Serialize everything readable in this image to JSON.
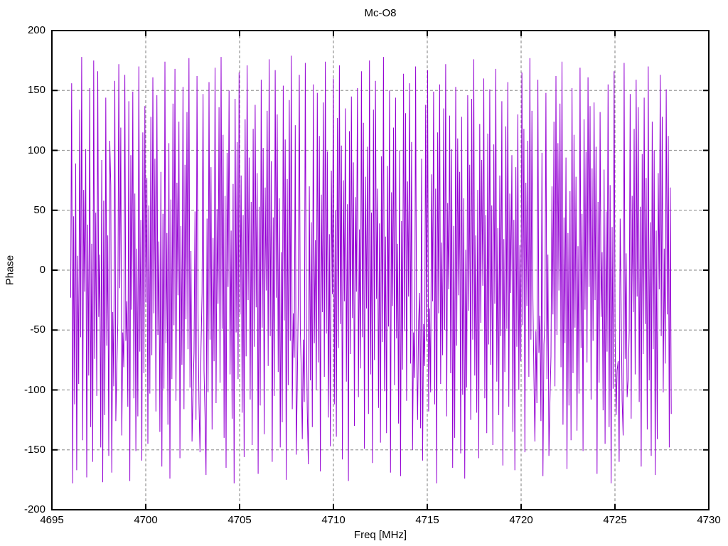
{
  "chart_data": {
    "type": "line",
    "title": "Mc-O8",
    "xlabel": "Freq [MHz]",
    "ylabel": "Phase",
    "xlim": [
      4695,
      4730
    ],
    "ylim": [
      -200,
      200
    ],
    "x_ticks": [
      4695,
      4700,
      4705,
      4710,
      4715,
      4720,
      4725,
      4730
    ],
    "y_ticks": [
      -200,
      -150,
      -100,
      -50,
      0,
      50,
      100,
      150,
      200
    ],
    "grid": true,
    "legend": "none",
    "line_color": "#9400d3",
    "grid_color": "#9c9c9c",
    "border_color": "#000000",
    "background_color": "#ffffff",
    "series": [
      {
        "name": "phase",
        "x_start": 4696.0,
        "x_end": 4728.0,
        "y": [
          -23,
          156,
          -178,
          45,
          -112,
          89,
          -167,
          12,
          -95,
          134,
          -56,
          178,
          -142,
          67,
          -18,
          101,
          -173,
          38,
          -88,
          152,
          -131,
          22,
          -160,
          175,
          -74,
          48,
          -105,
          166,
          -39,
          13,
          -148,
          92,
          -177,
          58,
          -121,
          144,
          -63,
          29,
          -155,
          108,
          71,
          -169,
          -35,
          -97,
          158,
          -126,
          -84,
          -44,
          172,
          -15,
          119,
          -138,
          -52,
          -81,
          163,
          -59,
          -26,
          -114,
          141,
          -176,
          96,
          -33,
          149,
          -107,
          64,
          -151,
          18,
          -122,
          170,
          -68,
          42,
          -159,
          115,
          -86,
          137,
          -27,
          77,
          -145,
          54,
          -103,
          128,
          -71,
          161,
          -36,
          93,
          -118,
          146,
          -54,
          24,
          -135,
          82,
          -164,
          47,
          -99,
          174,
          -61,
          31,
          -129,
          106,
          -174,
          59,
          -91,
          139,
          -46,
          168,
          -109,
          73,
          -21,
          124,
          -157,
          37,
          -79,
          153,
          -116,
          88,
          -41,
          132,
          -66,
          177,
          -98,
          16,
          -143,
          -104,
          -69,
          49,
          -125,
          162,
          -34,
          -111,
          -152,
          -66,
          -19,
          147,
          -84,
          -122,
          -171,
          43,
          -102,
          157,
          -58,
          86,
          -133,
          27,
          -76,
          169,
          -111,
          51,
          -28,
          136,
          -94,
          178,
          -49,
          113,
          -140,
          62,
          -165,
          98,
          -14,
          150,
          -87,
          33,
          -124,
          72,
          -178,
          143,
          -52,
          107,
          -91,
          165,
          -37,
          79,
          -119,
          46,
          -156,
          126,
          -72,
          171,
          -25,
          94,
          -108,
          57,
          -146,
          118,
          -64,
          138,
          -31,
          81,
          -170,
          53,
          -113,
          159,
          -48,
          102,
          -137,
          69,
          -17,
          133,
          -80,
          176,
          -55,
          91,
          -160,
          44,
          -105,
          167,
          -23,
          130,
          -85,
          60,
          -148,
          15,
          -127,
          154,
          -42,
          109,
          -175,
          76,
          -96,
          142,
          -59,
          179,
          -116,
          -36,
          -73,
          121,
          -154,
          -97,
          -29,
          163,
          -50,
          -85,
          -141,
          -58,
          -110,
          173,
          -38,
          -117,
          -162,
          70,
          -92,
          40,
          -131,
          155,
          -61,
          25,
          -100,
          148,
          -77,
          112,
          -168,
          63,
          -35,
          140,
          -89,
          174,
          -53,
          99,
          -123,
          30,
          -147,
          83,
          -20,
          160,
          -112,
          50,
          -139,
          127,
          -65,
          171,
          -45,
          104,
          -158,
          75,
          -26,
          135,
          -93,
          55,
          -176,
          116,
          -70,
          145,
          -40,
          90,
          -130,
          61,
          -18,
          152,
          -106,
          34,
          -82,
          166,
          -56,
          123,
          -149,
          78,
          -32,
          103,
          -120,
          175,
          -87,
          48,
          -161,
          134,
          -75,
          158,
          -24,
          68,
          -115,
          39,
          -144,
          95,
          -60,
          178,
          -101,
          28,
          -136,
          87,
          -47,
          150,
          -169,
          65,
          -30,
          119,
          -96,
          144,
          -57,
          22,
          -128,
          100,
          -172,
          41,
          -83,
          164,
          -51,
          131,
          -109,
          74,
          -22,
          156,
          -78,
          107,
          -150,
          -52,
          -90,
          170,
          -66,
          -125,
          -43,
          -19,
          -132,
          93,
          -159,
          -45,
          -80,
          138,
          -59,
          167,
          -118,
          -32,
          -102,
          80,
          -26,
          149,
          -112,
          68,
          -178,
          115,
          -36,
          155,
          -95,
          23,
          -71,
          135,
          -50,
          172,
          -122,
          56,
          -16,
          129,
          -86,
          101,
          -165,
          37,
          -140,
          153,
          -63,
          110,
          -21,
          82,
          -153,
          128,
          -104,
          60,
          -174,
          17,
          -98,
          146,
          -34,
          88,
          -125,
          143,
          -58,
          176,
          -88,
          29,
          -119,
          67,
          -157,
          122,
          -44,
          92,
          -13,
          160,
          -107,
          46,
          -136,
          114,
          -62,
          151,
          -79,
          54,
          -146,
          105,
          -28,
          168,
          -93,
          35,
          -121,
          79,
          -55,
          141,
          -163,
          26,
          -85,
          120,
          -49,
          157,
          -114,
          64,
          -19,
          96,
          -135,
          42,
          -167,
          86,
          -64,
          130,
          -100,
          21,
          -76,
          165,
          -46,
          118,
          -152,
          73,
          -30,
          108,
          -89,
          177,
          -58,
          133,
          -24,
          -89,
          -143,
          -51,
          -111,
          159,
          -69,
          -38,
          -126,
          98,
          -172,
          -62,
          -41,
          148,
          -91,
          13,
          -155,
          -111,
          -72,
          70,
          -37,
          124,
          -97,
          162,
          -54,
          106,
          -17,
          139,
          -81,
          174,
          -129,
          44,
          -61,
          94,
          -166,
          31,
          -113,
          66,
          -142,
          152,
          -86,
          113,
          -48,
          78,
          -134,
          20,
          -103,
          169,
          -65,
          47,
          -151,
          126,
          -33,
          99,
          -77,
          161,
          -14,
          137,
          -108,
          85,
          -59,
          140,
          -25,
          103,
          -170,
          57,
          -94,
          132,
          -39,
          15,
          -117,
          84,
          -145,
          49,
          -68,
          155,
          -131,
          71,
          -178,
          36,
          -99,
          166,
          -53,
          -121,
          -84,
          -76,
          -160,
          43,
          -28,
          -109,
          -138,
          173,
          -74,
          14,
          -106,
          -91,
          -52,
          147,
          -124,
          62,
          -35,
          118,
          -87,
          159,
          -22,
          136,
          -110,
          53,
          -164,
          97,
          -70,
          144,
          -45,
          77,
          -133,
          170,
          -92,
          40,
          -155,
          124,
          -66,
          100,
          -171,
          33,
          -141,
          81,
          -16,
          163,
          -55,
          128,
          -102,
          18,
          -78,
          151,
          -37,
          112,
          -148,
          69,
          -120
        ]
      }
    ]
  }
}
